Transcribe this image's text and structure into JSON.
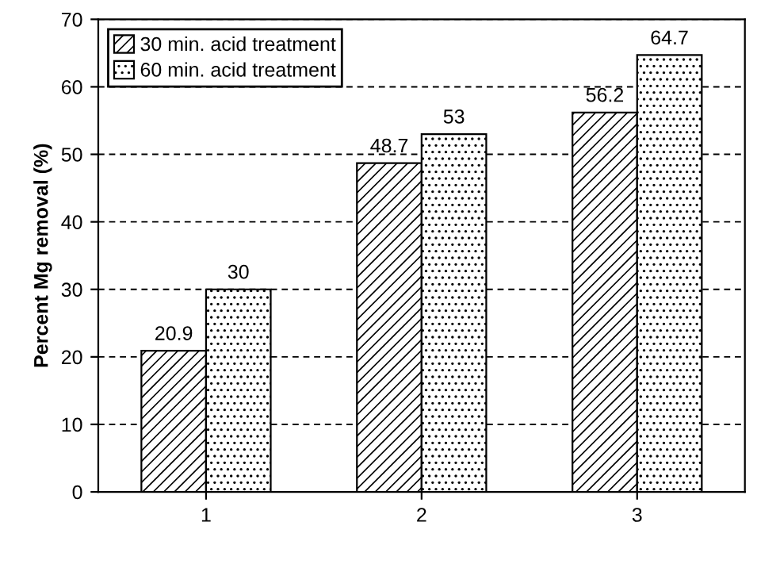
{
  "chart_data": {
    "type": "bar",
    "ylabel": "Percent Mg removal (%)",
    "categories": [
      "1",
      "2",
      "3"
    ],
    "series": [
      {
        "name": "30 min. acid treatment",
        "color": "#000000",
        "values": [
          20.9,
          48.7,
          56.2
        ]
      },
      {
        "name": "60 min. acid treatment",
        "color": "#000000",
        "values": [
          30,
          53,
          64.7
        ]
      }
    ],
    "ylim": [
      0,
      70
    ],
    "yticks": [
      0,
      10,
      20,
      30,
      40,
      50,
      60,
      70
    ],
    "grid": "y",
    "legend": "top left",
    "data_labels": true
  }
}
